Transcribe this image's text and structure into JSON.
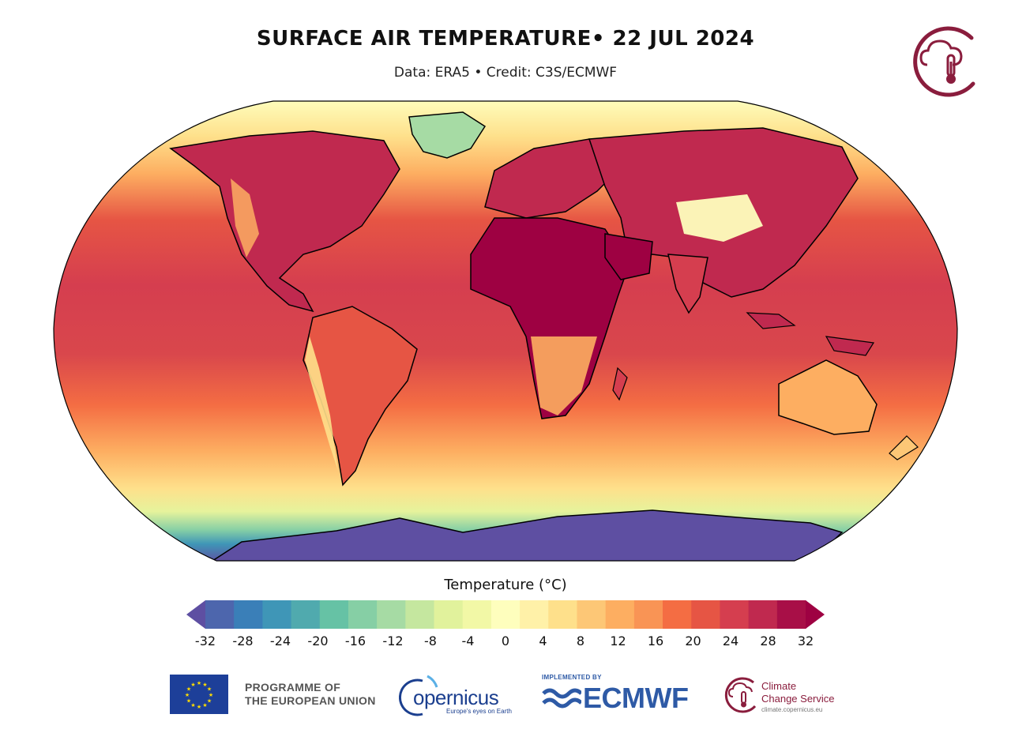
{
  "header": {
    "title": "SURFACE AIR TEMPERATURE• 22 JUL 2024",
    "subtitle": "Data: ERA5 • Credit: C3S/ECMWF",
    "logo_icon": "c3s-cloud-thermometer-icon"
  },
  "map": {
    "projection": "Robinson",
    "variable": "surface-air-temperature",
    "coastlines": "black"
  },
  "legend": {
    "title": "Temperature (°C)",
    "tick_labels": [
      "-32",
      "-28",
      "-24",
      "-20",
      "-16",
      "-12",
      "-8",
      "-4",
      "0",
      "4",
      "8",
      "12",
      "16",
      "20",
      "24",
      "28",
      "32"
    ],
    "range": [
      -32,
      32
    ],
    "step": 2,
    "extend": "both",
    "colors": [
      "#5e4fa2",
      "#4d66ad",
      "#3a7fb8",
      "#3f96b7",
      "#50aaae",
      "#66c2a5",
      "#86cfa5",
      "#a6dba4",
      "#c5e79f",
      "#e1f29c",
      "#f2f8a6",
      "#fefebd",
      "#fff1a8",
      "#fee08b",
      "#fdc776",
      "#fdae61",
      "#f99455",
      "#f46d43",
      "#e65544",
      "#d53e4f",
      "#c0294f",
      "#a80f47",
      "#9e0142"
    ]
  },
  "footer": {
    "eu": {
      "line1": "PROGRAMME OF",
      "line2": "THE EUROPEAN UNION",
      "icon": "eu-flag-icon"
    },
    "copernicus": {
      "wordmark": "opernicus",
      "tagline": "Europe's eyes on Earth",
      "icon": "copernicus-ring-icon"
    },
    "ecmwf": {
      "implemented_by": "IMPLEMENTED BY",
      "wordmark": "ECMWF",
      "icon": "ecmwf-waves-icon"
    },
    "c3s": {
      "line1": "Climate",
      "line2": "Change Service",
      "url": "climate.copernicus.eu",
      "icon": "c3s-logo-icon"
    }
  }
}
